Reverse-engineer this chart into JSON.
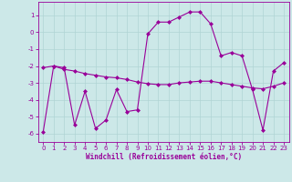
{
  "xlabel": "Windchill (Refroidissement éolien,°C)",
  "background_color": "#cce8e8",
  "grid_color": "#b0d4d4",
  "line_color": "#990099",
  "xlim": [
    -0.5,
    23.5
  ],
  "ylim": [
    -6.5,
    1.8
  ],
  "yticks": [
    -6,
    -5,
    -4,
    -3,
    -2,
    -1,
    0,
    1
  ],
  "xticks": [
    0,
    1,
    2,
    3,
    4,
    5,
    6,
    7,
    8,
    9,
    10,
    11,
    12,
    13,
    14,
    15,
    16,
    17,
    18,
    19,
    20,
    21,
    22,
    23
  ],
  "line1_x": [
    0,
    1,
    2,
    3,
    4,
    5,
    6,
    7,
    8,
    9,
    10,
    11,
    12,
    13,
    14,
    15,
    16,
    17,
    18,
    19,
    20,
    21,
    22,
    23
  ],
  "line1_y": [
    -5.9,
    -2.0,
    -2.1,
    -5.5,
    -3.5,
    -5.7,
    -5.2,
    -3.4,
    -4.7,
    -4.6,
    -0.1,
    0.6,
    0.6,
    0.9,
    1.2,
    1.2,
    0.5,
    -1.4,
    -1.2,
    -1.4,
    -3.4,
    -5.8,
    -2.3,
    -1.8
  ],
  "line2_x": [
    0,
    1,
    2,
    3,
    4,
    5,
    6,
    7,
    8,
    9,
    10,
    11,
    12,
    13,
    14,
    15,
    16,
    17,
    18,
    19,
    20,
    21,
    22,
    23
  ],
  "line2_y": [
    -2.1,
    -2.0,
    -2.2,
    -2.3,
    -2.45,
    -2.55,
    -2.65,
    -2.7,
    -2.8,
    -2.95,
    -3.05,
    -3.1,
    -3.1,
    -3.0,
    -2.95,
    -2.9,
    -2.9,
    -3.0,
    -3.1,
    -3.2,
    -3.3,
    -3.35,
    -3.2,
    -3.0
  ],
  "marker": "D",
  "markersize": 2.0,
  "linewidth": 0.8,
  "tick_fontsize": 5.0,
  "label_fontsize": 5.5
}
